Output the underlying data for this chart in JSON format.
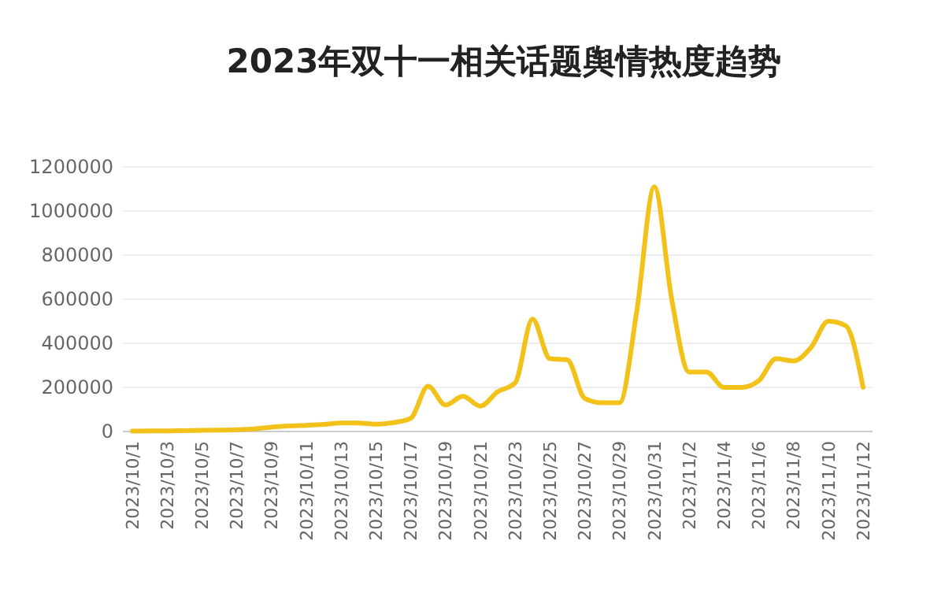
{
  "chart_data": {
    "type": "line",
    "title": "2023年双十一相关话题舆情热度趋势",
    "categories": [
      "2023/10/1",
      null,
      "2023/10/3",
      null,
      "2023/10/5",
      null,
      "2023/10/7",
      null,
      "2023/10/9",
      null,
      "2023/10/11",
      null,
      "2023/10/13",
      null,
      "2023/10/15",
      null,
      "2023/10/17",
      null,
      "2023/10/19",
      null,
      "2023/10/21",
      null,
      "2023/10/23",
      null,
      "2023/10/25",
      null,
      "2023/10/27",
      null,
      "2023/10/29",
      null,
      "2023/10/31",
      null,
      "2023/11/2",
      null,
      "2023/11/4",
      null,
      "2023/11/6",
      null,
      "2023/11/8",
      null,
      "2023/11/10",
      null,
      "2023/11/12"
    ],
    "series": [
      {
        "color": "#f2c21a",
        "values": [
          2000,
          3000,
          3000,
          4000,
          5000,
          6000,
          8000,
          12000,
          20000,
          25000,
          28000,
          32000,
          38000,
          38000,
          33000,
          40000,
          60000,
          205000,
          120000,
          160000,
          115000,
          180000,
          220000,
          510000,
          330000,
          325000,
          150000,
          130000,
          130000,
          550000,
          1110000,
          600000,
          270000,
          270000,
          200000,
          200000,
          230000,
          330000,
          320000,
          380000,
          500000,
          480000,
          200000
        ]
      }
    ],
    "ylim": [
      0,
      1200000
    ],
    "yticks": [
      0,
      200000,
      400000,
      600000,
      800000,
      1000000,
      1200000
    ],
    "grid": "y",
    "marker": "none",
    "line_style": "solid"
  }
}
